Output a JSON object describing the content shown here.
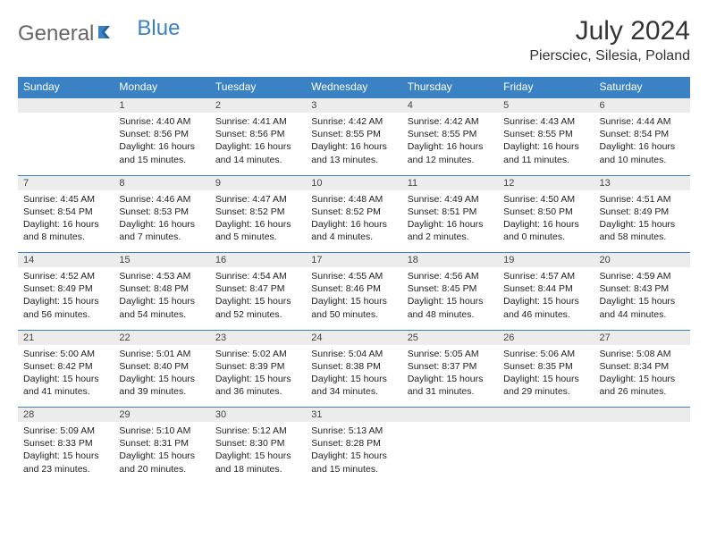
{
  "brand": {
    "part1": "General",
    "part2": "Blue"
  },
  "title": "July 2024",
  "location": "Piersciec, Silesia, Poland",
  "colors": {
    "header_bg": "#3b82c4",
    "header_text": "#ffffff",
    "daynum_bg": "#ececec",
    "border": "#3b82c4",
    "text": "#222222"
  },
  "day_headers": [
    "Sunday",
    "Monday",
    "Tuesday",
    "Wednesday",
    "Thursday",
    "Friday",
    "Saturday"
  ],
  "weeks": [
    [
      null,
      {
        "n": "1",
        "sr": "Sunrise: 4:40 AM",
        "ss": "Sunset: 8:56 PM",
        "dl": "Daylight: 16 hours and 15 minutes."
      },
      {
        "n": "2",
        "sr": "Sunrise: 4:41 AM",
        "ss": "Sunset: 8:56 PM",
        "dl": "Daylight: 16 hours and 14 minutes."
      },
      {
        "n": "3",
        "sr": "Sunrise: 4:42 AM",
        "ss": "Sunset: 8:55 PM",
        "dl": "Daylight: 16 hours and 13 minutes."
      },
      {
        "n": "4",
        "sr": "Sunrise: 4:42 AM",
        "ss": "Sunset: 8:55 PM",
        "dl": "Daylight: 16 hours and 12 minutes."
      },
      {
        "n": "5",
        "sr": "Sunrise: 4:43 AM",
        "ss": "Sunset: 8:55 PM",
        "dl": "Daylight: 16 hours and 11 minutes."
      },
      {
        "n": "6",
        "sr": "Sunrise: 4:44 AM",
        "ss": "Sunset: 8:54 PM",
        "dl": "Daylight: 16 hours and 10 minutes."
      }
    ],
    [
      {
        "n": "7",
        "sr": "Sunrise: 4:45 AM",
        "ss": "Sunset: 8:54 PM",
        "dl": "Daylight: 16 hours and 8 minutes."
      },
      {
        "n": "8",
        "sr": "Sunrise: 4:46 AM",
        "ss": "Sunset: 8:53 PM",
        "dl": "Daylight: 16 hours and 7 minutes."
      },
      {
        "n": "9",
        "sr": "Sunrise: 4:47 AM",
        "ss": "Sunset: 8:52 PM",
        "dl": "Daylight: 16 hours and 5 minutes."
      },
      {
        "n": "10",
        "sr": "Sunrise: 4:48 AM",
        "ss": "Sunset: 8:52 PM",
        "dl": "Daylight: 16 hours and 4 minutes."
      },
      {
        "n": "11",
        "sr": "Sunrise: 4:49 AM",
        "ss": "Sunset: 8:51 PM",
        "dl": "Daylight: 16 hours and 2 minutes."
      },
      {
        "n": "12",
        "sr": "Sunrise: 4:50 AM",
        "ss": "Sunset: 8:50 PM",
        "dl": "Daylight: 16 hours and 0 minutes."
      },
      {
        "n": "13",
        "sr": "Sunrise: 4:51 AM",
        "ss": "Sunset: 8:49 PM",
        "dl": "Daylight: 15 hours and 58 minutes."
      }
    ],
    [
      {
        "n": "14",
        "sr": "Sunrise: 4:52 AM",
        "ss": "Sunset: 8:49 PM",
        "dl": "Daylight: 15 hours and 56 minutes."
      },
      {
        "n": "15",
        "sr": "Sunrise: 4:53 AM",
        "ss": "Sunset: 8:48 PM",
        "dl": "Daylight: 15 hours and 54 minutes."
      },
      {
        "n": "16",
        "sr": "Sunrise: 4:54 AM",
        "ss": "Sunset: 8:47 PM",
        "dl": "Daylight: 15 hours and 52 minutes."
      },
      {
        "n": "17",
        "sr": "Sunrise: 4:55 AM",
        "ss": "Sunset: 8:46 PM",
        "dl": "Daylight: 15 hours and 50 minutes."
      },
      {
        "n": "18",
        "sr": "Sunrise: 4:56 AM",
        "ss": "Sunset: 8:45 PM",
        "dl": "Daylight: 15 hours and 48 minutes."
      },
      {
        "n": "19",
        "sr": "Sunrise: 4:57 AM",
        "ss": "Sunset: 8:44 PM",
        "dl": "Daylight: 15 hours and 46 minutes."
      },
      {
        "n": "20",
        "sr": "Sunrise: 4:59 AM",
        "ss": "Sunset: 8:43 PM",
        "dl": "Daylight: 15 hours and 44 minutes."
      }
    ],
    [
      {
        "n": "21",
        "sr": "Sunrise: 5:00 AM",
        "ss": "Sunset: 8:42 PM",
        "dl": "Daylight: 15 hours and 41 minutes."
      },
      {
        "n": "22",
        "sr": "Sunrise: 5:01 AM",
        "ss": "Sunset: 8:40 PM",
        "dl": "Daylight: 15 hours and 39 minutes."
      },
      {
        "n": "23",
        "sr": "Sunrise: 5:02 AM",
        "ss": "Sunset: 8:39 PM",
        "dl": "Daylight: 15 hours and 36 minutes."
      },
      {
        "n": "24",
        "sr": "Sunrise: 5:04 AM",
        "ss": "Sunset: 8:38 PM",
        "dl": "Daylight: 15 hours and 34 minutes."
      },
      {
        "n": "25",
        "sr": "Sunrise: 5:05 AM",
        "ss": "Sunset: 8:37 PM",
        "dl": "Daylight: 15 hours and 31 minutes."
      },
      {
        "n": "26",
        "sr": "Sunrise: 5:06 AM",
        "ss": "Sunset: 8:35 PM",
        "dl": "Daylight: 15 hours and 29 minutes."
      },
      {
        "n": "27",
        "sr": "Sunrise: 5:08 AM",
        "ss": "Sunset: 8:34 PM",
        "dl": "Daylight: 15 hours and 26 minutes."
      }
    ],
    [
      {
        "n": "28",
        "sr": "Sunrise: 5:09 AM",
        "ss": "Sunset: 8:33 PM",
        "dl": "Daylight: 15 hours and 23 minutes."
      },
      {
        "n": "29",
        "sr": "Sunrise: 5:10 AM",
        "ss": "Sunset: 8:31 PM",
        "dl": "Daylight: 15 hours and 20 minutes."
      },
      {
        "n": "30",
        "sr": "Sunrise: 5:12 AM",
        "ss": "Sunset: 8:30 PM",
        "dl": "Daylight: 15 hours and 18 minutes."
      },
      {
        "n": "31",
        "sr": "Sunrise: 5:13 AM",
        "ss": "Sunset: 8:28 PM",
        "dl": "Daylight: 15 hours and 15 minutes."
      },
      null,
      null,
      null
    ]
  ]
}
